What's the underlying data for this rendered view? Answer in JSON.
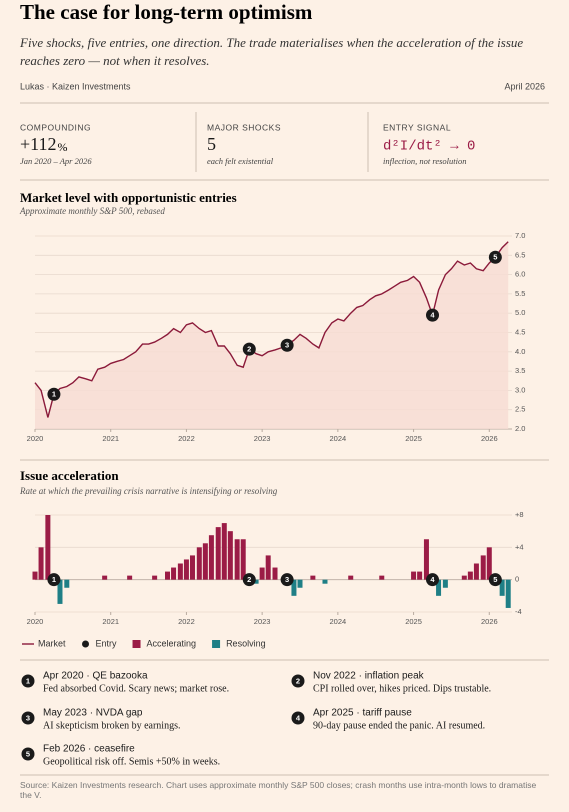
{
  "header": {
    "title": "The case for long-term optimism",
    "subtitle": "Five shocks, five entries, one direction. The trade materialises when the acceleration of the issue reaches zero — not when it resolves.",
    "byline": "Lukas · Kaizen Investments",
    "date": "April 2026"
  },
  "stats": [
    {
      "label": "COMPOUNDING",
      "value": "+112",
      "unit": "%",
      "note": "Jan 2020 – Apr 2026"
    },
    {
      "label": "MAJOR SHOCKS",
      "value": "5",
      "note": "each felt existential"
    },
    {
      "label": "ENTRY SIGNAL",
      "value": "d²I/dt² → 0",
      "note": "inflection, not resolution"
    }
  ],
  "chart_data": [
    {
      "type": "line",
      "title": "Market level with opportunistic entries",
      "subtitle": "Approximate monthly S&P 500, rebased",
      "x": [
        2020,
        2020.08,
        2020.17,
        2020.25,
        2020.33,
        2020.42,
        2020.5,
        2020.58,
        2020.67,
        2020.75,
        2020.83,
        2020.92,
        2021,
        2021.08,
        2021.17,
        2021.25,
        2021.33,
        2021.42,
        2021.5,
        2021.58,
        2021.67,
        2021.75,
        2021.83,
        2021.92,
        2022,
        2022.08,
        2022.17,
        2022.25,
        2022.33,
        2022.42,
        2022.5,
        2022.58,
        2022.67,
        2022.75,
        2022.83,
        2022.92,
        2023,
        2023.08,
        2023.17,
        2023.25,
        2023.33,
        2023.42,
        2023.5,
        2023.58,
        2023.67,
        2023.75,
        2023.83,
        2023.92,
        2024,
        2024.08,
        2024.17,
        2024.25,
        2024.33,
        2024.42,
        2024.5,
        2024.58,
        2024.67,
        2024.75,
        2024.83,
        2024.92,
        2025,
        2025.08,
        2025.17,
        2025.25,
        2025.33,
        2025.42,
        2025.5,
        2025.58,
        2025.67,
        2025.75,
        2025.83,
        2025.92,
        2026,
        2026.08,
        2026.17,
        2026.25
      ],
      "series": [
        {
          "name": "Market",
          "color": "#8b1a3a",
          "fill": "#f6dcd3",
          "values": [
            3.2,
            3.0,
            2.3,
            2.9,
            3.05,
            3.1,
            3.2,
            3.35,
            3.3,
            3.25,
            3.55,
            3.6,
            3.7,
            3.75,
            3.8,
            3.9,
            4.0,
            4.2,
            4.2,
            4.25,
            4.35,
            4.45,
            4.6,
            4.5,
            4.7,
            4.75,
            4.6,
            4.5,
            4.55,
            4.15,
            4.15,
            3.95,
            3.65,
            3.6,
            4.07,
            3.95,
            3.9,
            4.0,
            4.05,
            4.1,
            4.17,
            4.3,
            4.45,
            4.35,
            4.2,
            4.1,
            4.5,
            4.75,
            4.85,
            4.8,
            5.0,
            5.15,
            5.2,
            5.35,
            5.45,
            5.5,
            5.6,
            5.7,
            5.8,
            5.85,
            5.95,
            5.8,
            5.4,
            4.95,
            5.6,
            6.0,
            6.15,
            6.35,
            6.25,
            6.3,
            6.15,
            6.1,
            6.3,
            6.45,
            6.7,
            6.85
          ]
        }
      ],
      "entries": {
        "x": [
          2020.25,
          2022.83,
          2023.33,
          2025.25,
          2026.08
        ],
        "values": [
          2.9,
          4.07,
          4.17,
          4.95,
          6.45
        ],
        "labels": [
          "1",
          "2",
          "3",
          "4",
          "5"
        ],
        "color": "#1a1a1a"
      },
      "xlim": [
        2020,
        2026.3
      ],
      "xticks": [
        2020,
        2021,
        2022,
        2023,
        2024,
        2025,
        2026
      ],
      "ylim": [
        2,
        7
      ],
      "yticks": [
        {
          "value": 2,
          "label": "2.0"
        },
        2.5,
        {
          "value": 3,
          "label": "3.0"
        },
        3.5,
        {
          "value": 4,
          "label": "4.0"
        },
        4.5,
        {
          "value": 5,
          "label": "5.0"
        },
        5.5,
        {
          "value": 6,
          "label": "6.0"
        },
        6.5,
        {
          "value": 7,
          "label": "7.0"
        }
      ],
      "grid": true
    },
    {
      "type": "bar",
      "title": "Issue acceleration",
      "subtitle": "Rate at which the prevailing crisis narrative is intensifying or resolving",
      "x": [
        2020,
        2020.08,
        2020.17,
        2020.25,
        2020.33,
        2020.42,
        2020.5,
        2020.58,
        2020.67,
        2020.75,
        2020.83,
        2020.92,
        2021,
        2021.08,
        2021.17,
        2021.25,
        2021.33,
        2021.42,
        2021.5,
        2021.58,
        2021.67,
        2021.75,
        2021.83,
        2021.92,
        2022,
        2022.08,
        2022.17,
        2022.25,
        2022.33,
        2022.42,
        2022.5,
        2022.58,
        2022.67,
        2022.75,
        2022.83,
        2022.92,
        2023,
        2023.08,
        2023.17,
        2023.25,
        2023.33,
        2023.42,
        2023.5,
        2023.58,
        2023.67,
        2023.75,
        2023.83,
        2023.92,
        2024,
        2024.08,
        2024.17,
        2024.25,
        2024.33,
        2024.42,
        2024.5,
        2024.58,
        2024.67,
        2024.75,
        2024.83,
        2024.92,
        2025,
        2025.08,
        2025.17,
        2025.25,
        2025.33,
        2025.42,
        2025.5,
        2025.58,
        2025.67,
        2025.75,
        2025.83,
        2025.92,
        2026,
        2026.08,
        2026.17,
        2026.25
      ],
      "series": [
        {
          "name": "Accelerating",
          "color": "#9b1c46",
          "negative_color": "#1f7f86",
          "values": [
            1,
            4,
            8,
            0,
            -3,
            -1,
            0,
            0,
            0,
            0,
            0,
            0.5,
            0,
            0,
            0,
            0.5,
            0,
            0,
            0,
            0.5,
            0,
            1,
            1.5,
            2,
            2.5,
            3,
            4,
            4.5,
            5.5,
            6.5,
            7,
            6,
            5,
            5,
            0,
            -0.5,
            1.5,
            3,
            1.5,
            0,
            0,
            -2,
            -1,
            0,
            0.5,
            0,
            -0.5,
            0,
            0,
            0,
            0.5,
            0,
            0,
            0,
            0,
            0.5,
            0,
            0,
            0,
            0,
            1,
            1,
            5,
            0,
            -2,
            -1,
            0,
            0,
            0.5,
            1,
            2,
            3,
            4,
            0,
            -2,
            -3.5
          ]
        }
      ],
      "xlim": [
        2020,
        2026.3
      ],
      "xticks": [
        2020,
        2021,
        2022,
        2023,
        2024,
        2025,
        2026
      ],
      "ylim": [
        -4,
        8
      ],
      "yticks": [
        -4,
        0,
        {
          "value": 4,
          "label": "+4"
        },
        {
          "value": 8,
          "label": "+8"
        }
      ],
      "grid": true
    }
  ],
  "legend": [
    {
      "name": "Market",
      "color": "#8b1a3a",
      "shape": "line"
    },
    {
      "name": "Entry",
      "color": "#1a1a1a",
      "shape": "dot"
    },
    {
      "name": "Accelerating",
      "color": "#9b1c46",
      "shape": "square"
    },
    {
      "name": "Resolving",
      "color": "#1f7f86",
      "shape": "square"
    }
  ],
  "notes": [
    {
      "title": "Apr 2020 · QE bazooka",
      "text": "Fed absorbed Covid. Scary news; market rose."
    },
    {
      "title": "Nov 2022 · inflation peak",
      "text": "CPI rolled over, hikes priced. Dips trustable."
    },
    {
      "title": "May 2023 · NVDA gap",
      "text": "AI skepticism broken by earnings."
    },
    {
      "title": "Apr 2025 · tariff pause",
      "text": "90-day pause ended the panic. AI resumed."
    },
    {
      "title": "Feb 2026 · ceasefire",
      "text": "Geopolitical risk off. Semis +50% in weeks."
    }
  ],
  "source": "Source: Kaizen Investments research. Chart uses approximate monthly S&P 500 closes; crash months use intra-month lows to dramatise the V."
}
